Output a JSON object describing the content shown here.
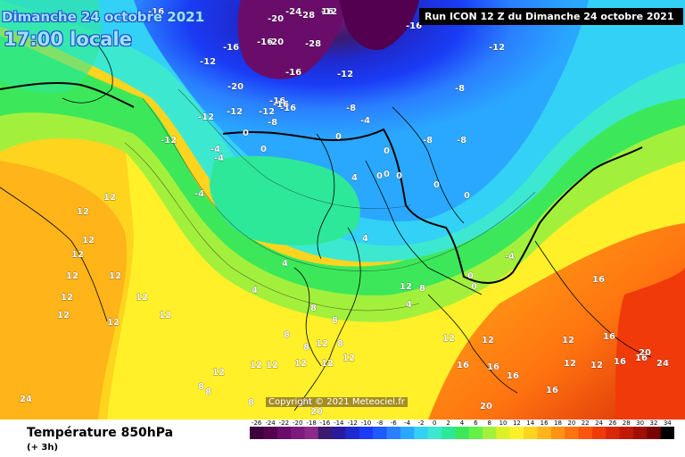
{
  "header": {
    "date": "Dimanche 24 octobre 2021",
    "time": "17:00 locale",
    "run": "Run ICON 12 Z du Dimanche 24 octobre 2021"
  },
  "copyright": "Copyright © 2021 Meteociel.fr",
  "footer": {
    "variable": "Température 850hPa",
    "offset": "(+ 3h)"
  },
  "legend": {
    "ticks": [
      "-26",
      "-24",
      "-22",
      "-20",
      "-18",
      "-16",
      "-14",
      "-12",
      "-10",
      "-8",
      "-6",
      "-4",
      "-2",
      "0",
      "2",
      "4",
      "6",
      "8",
      "10",
      "12",
      "14",
      "16",
      "18",
      "20",
      "22",
      "24",
      "26",
      "28",
      "30",
      "32",
      "34"
    ],
    "colors": [
      "#3c003c",
      "#52004f",
      "#6a0d6a",
      "#7d1a7d",
      "#8a2b8a",
      "#3c1a6e",
      "#2a1aa0",
      "#1e2acf",
      "#1a3cf5",
      "#1e5aff",
      "#2a7fff",
      "#2aa8ff",
      "#33d1f5",
      "#3de8d0",
      "#2ee89a",
      "#3ce85a",
      "#66f04a",
      "#a3f03c",
      "#dcf028",
      "#fff02a",
      "#ffd41e",
      "#ffb41a",
      "#ff9414",
      "#ff7410",
      "#ff540c",
      "#f03a0a",
      "#d82808",
      "#c01a06",
      "#a00e04",
      "#780402",
      "#000000"
    ]
  },
  "map_labels": [
    "-12",
    "-16",
    "-20",
    "-24",
    "-28",
    "-16",
    "-12",
    "-16",
    "-20",
    "-28",
    "-12",
    "-16",
    "-16",
    "-12",
    "-12",
    "-12",
    "-20",
    "-16",
    "-12",
    "-12",
    "-16",
    "-16",
    "-8",
    "-8",
    "-8",
    "-8",
    "-8",
    "-4",
    "-4",
    "-4",
    "-4",
    "-4",
    "0",
    "0",
    "0",
    "0",
    "0",
    "0",
    "0",
    "0",
    "0",
    "0",
    "0",
    "4",
    "4",
    "4",
    "4",
    "4",
    "8",
    "8",
    "8",
    "8",
    "8",
    "8",
    "8",
    "8",
    "8",
    "12",
    "12",
    "12",
    "12",
    "12",
    "12",
    "12",
    "12",
    "12",
    "12",
    "12",
    "12",
    "12",
    "12",
    "12",
    "12",
    "12",
    "12",
    "12",
    "12",
    "12",
    "12",
    "12",
    "12",
    "16",
    "16",
    "16",
    "16",
    "16",
    "16",
    "16",
    "16",
    "20",
    "20",
    "20",
    "20",
    "24",
    "24",
    "16"
  ]
}
